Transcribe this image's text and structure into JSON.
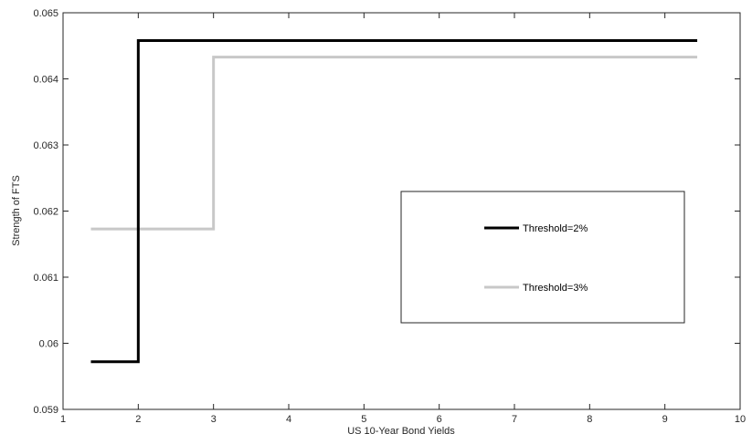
{
  "chart_data": {
    "type": "line",
    "title": "",
    "xlabel": "US 10-Year Bond Yields",
    "ylabel": "Strength of FTS",
    "xlim": [
      1,
      10
    ],
    "ylim": [
      0.059,
      0.065
    ],
    "x_ticks": [
      "1",
      "2",
      "3",
      "4",
      "5",
      "6",
      "7",
      "8",
      "9",
      "10"
    ],
    "y_ticks": [
      "0.059",
      "0.06",
      "0.061",
      "0.062",
      "0.063",
      "0.064",
      "0.065"
    ],
    "grid": false,
    "legend_position": "center-right",
    "series": [
      {
        "name": "Threshold=2%",
        "color": "#000000",
        "step": true,
        "x": [
          1.37,
          2.0,
          2.0,
          9.43
        ],
        "y": [
          0.05972,
          0.05972,
          0.06458,
          0.06458
        ]
      },
      {
        "name": "Threshold=3%",
        "color": "#c8c8c8",
        "step": true,
        "x": [
          1.37,
          3.0,
          3.0,
          9.43
        ],
        "y": [
          0.06173,
          0.06173,
          0.06433,
          0.06433
        ]
      }
    ]
  }
}
